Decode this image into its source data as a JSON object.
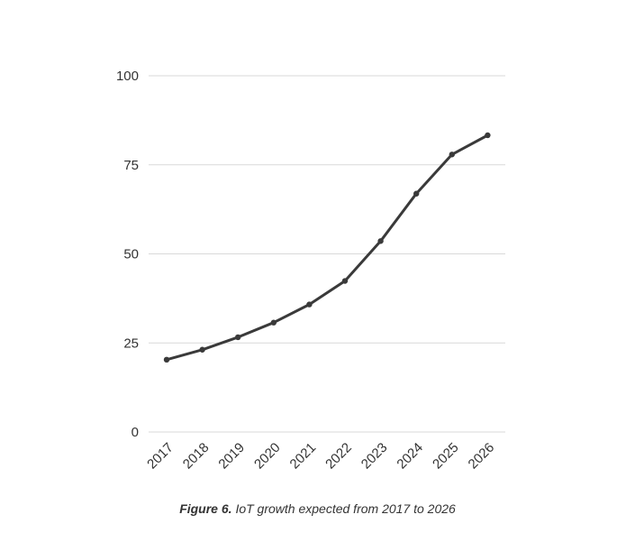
{
  "caption": {
    "figure_label": "Figure 6.",
    "text": "IoT growth expected from 2017 to 2026"
  },
  "colors": {
    "line": "#3a3a3a",
    "grid": "#d9d9d9",
    "text": "#333333"
  },
  "chart_data": {
    "type": "line",
    "title": "",
    "xlabel": "",
    "ylabel": "",
    "categories": [
      "2017",
      "2018",
      "2019",
      "2020",
      "2021",
      "2022",
      "2023",
      "2024",
      "2025",
      "2026"
    ],
    "series": [
      {
        "values": [
          20.3,
          23.1,
          26.6,
          30.7,
          35.8,
          42.4,
          53.6,
          66.9,
          77.9,
          83.3
        ]
      }
    ],
    "ylim": [
      0,
      100
    ],
    "yticks": [
      0,
      25,
      50,
      75,
      100
    ],
    "grid": true,
    "legend": "none"
  }
}
